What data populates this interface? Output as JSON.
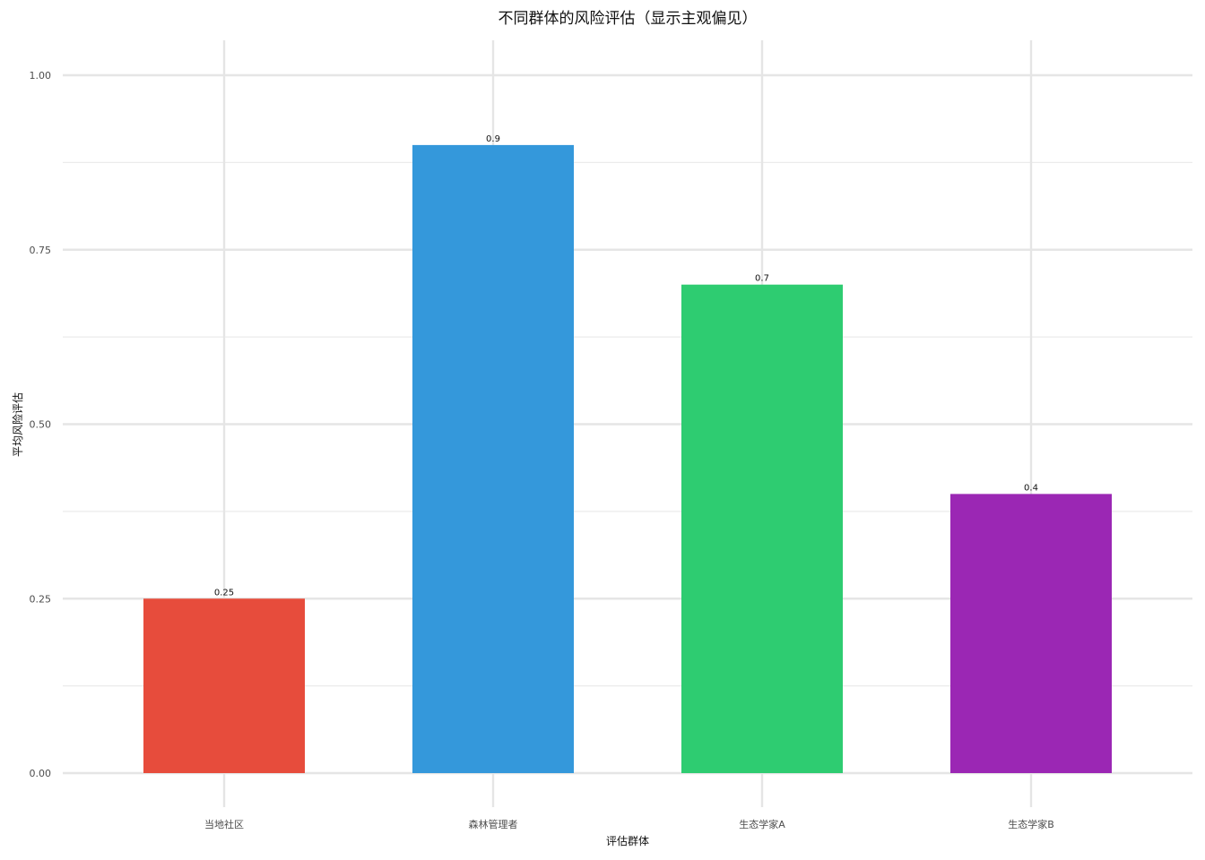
{
  "chart_data": {
    "type": "bar",
    "title": "不同群体的风险评估（显示主观偏见）",
    "xlabel": "评估群体",
    "ylabel": "平均风险评估",
    "categories": [
      "当地社区",
      "森林管理者",
      "生态学家A",
      "生态学家B"
    ],
    "values": [
      0.25,
      0.9,
      0.7,
      0.4
    ],
    "data_labels": [
      "0.25",
      "0.9",
      "0.7",
      "0.4"
    ],
    "colors": [
      "#E74C3C",
      "#3498DB",
      "#2ECC71",
      "#9B27B4"
    ],
    "ylim": [
      0,
      1.05
    ],
    "yticks": [
      0,
      0.25,
      0.5,
      0.75,
      1.0
    ],
    "ytick_labels": [
      "0.00",
      "0.25",
      "0.50",
      "0.75",
      "1.00"
    ],
    "grid": true,
    "legend": "none"
  }
}
